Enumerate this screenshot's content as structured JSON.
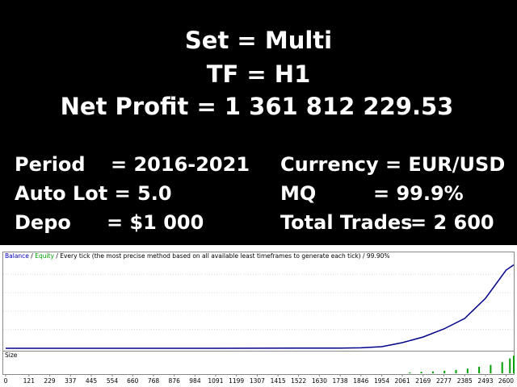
{
  "header": {
    "lines": [
      "Set = Multi",
      "TF  = H1",
      "Net Profit = 1 361 812 229.53"
    ]
  },
  "stats": {
    "left": [
      [
        "Period",
        "= 2016-2021"
      ],
      [
        "Auto Lot = 5.0",
        ""
      ],
      [
        "Depo",
        "= $1 000"
      ]
    ],
    "right": [
      [
        "Currency = EUR/USD",
        ""
      ],
      [
        "MQ",
        "= 99.9%"
      ],
      [
        "Total Trades",
        "= 2 600"
      ]
    ]
  },
  "chart_data": [
    {
      "type": "line",
      "legend": [
        "Balance",
        " / ",
        "Equity",
        " / Every tick (the most precise method based on all available least timeframes to generate each tick) / ",
        "99.90%"
      ],
      "legend_colors": [
        "#0000c0",
        "#000000",
        "#00a000",
        "#000000",
        "#000000"
      ],
      "x": [
        0,
        229,
        445,
        660,
        876,
        1091,
        1307,
        1522,
        1738,
        1846,
        1954,
        2061,
        2169,
        2277,
        2385,
        2493,
        2600,
        2640
      ],
      "series": [
        {
          "name": "Balance",
          "color": "#00008b",
          "values": [
            1000,
            20000,
            60000,
            150000,
            300000,
            600000,
            1000000,
            2000000,
            4000000,
            8000000,
            26000000,
            92000000,
            184000000,
            316000000,
            487000000,
            816000000,
            1276000000,
            1361813229.53
          ]
        }
      ],
      "xlim": [
        0,
        2640
      ],
      "xticks": [
        0,
        121,
        229,
        337,
        445,
        554,
        660,
        768,
        876,
        984,
        1091,
        1199,
        1307,
        1415,
        1522,
        1630,
        1738,
        1846,
        1954,
        2061,
        2169,
        2277,
        2385,
        2493,
        2600
      ],
      "ylim": [
        0,
        1500000000
      ]
    },
    {
      "type": "bar",
      "title": "Size",
      "color": "#00a000",
      "x": [
        2100,
        2160,
        2220,
        2280,
        2340,
        2400,
        2460,
        2520,
        2580,
        2620,
        2640
      ],
      "values": [
        5,
        8,
        10,
        14,
        18,
        25,
        35,
        45,
        60,
        80,
        95
      ],
      "ylim": [
        0,
        100
      ]
    }
  ]
}
